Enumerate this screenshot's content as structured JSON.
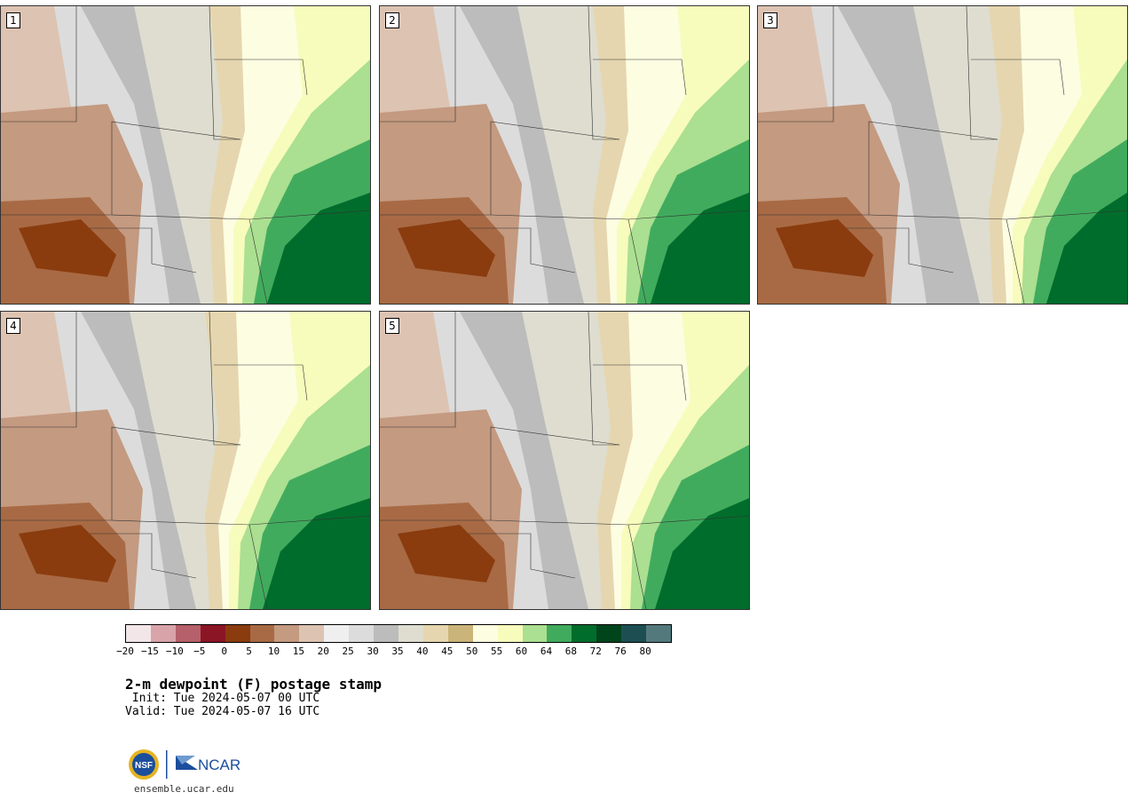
{
  "panels": [
    {
      "label": "1"
    },
    {
      "label": "2"
    },
    {
      "label": "3"
    },
    {
      "label": "4"
    },
    {
      "label": "5"
    }
  ],
  "colorbar": {
    "colors": [
      "#f3e6e8",
      "#d9a3aa",
      "#b5606a",
      "#8c1525",
      "#8a3c0e",
      "#a86a44",
      "#c49a80",
      "#ddc3b2",
      "#efefef",
      "#dcdcdc",
      "#bcbcbc",
      "#deddd0",
      "#e5d6af",
      "#cbb479",
      "#fdfde2",
      "#f7fcbc",
      "#abdf91",
      "#41ab5d",
      "#006d2c",
      "#00441b",
      "#1d4f52",
      "#54797d"
    ],
    "tick_labels": [
      "−20",
      "−15",
      "−10",
      "−5",
      "0",
      "5",
      "10",
      "15",
      "20",
      "25",
      "30",
      "35",
      "40",
      "45",
      "50",
      "55",
      "60",
      "64",
      "68",
      "72",
      "76",
      "80"
    ]
  },
  "title": "2-m dewpoint (F) postage stamp",
  "init": " Init: Tue 2024-05-07 00 UTC",
  "valid": "Valid: Tue 2024-05-07 16 UTC",
  "logos": {
    "nsf": "NSF",
    "ncar": "NCAR"
  },
  "url": "ensemble.ucar.edu"
}
